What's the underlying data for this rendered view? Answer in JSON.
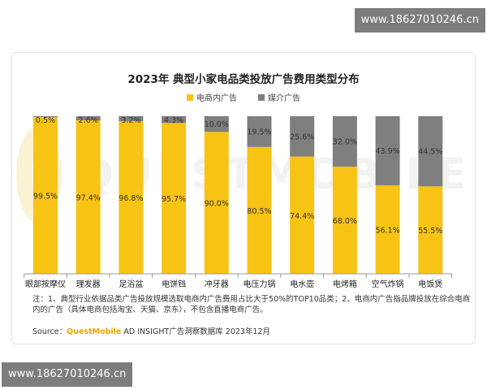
{
  "phone_banner": "www.18627010246.cn",
  "watermark_text": "QUESTMOBILE",
  "colors": {
    "ecommerce": "#f7c315",
    "media": "#7f7f7f"
  },
  "note": "注：1、典型行业依据品类广告投放规模选取电商内广告费用占比大于50%的TOP10品类；2、电商内广告指品牌投放在综合电商内的广告（具体电商包括淘宝、天猫、京东），不包含直播电商广告。",
  "source": {
    "label": "Source：",
    "brand": "QuestMobile",
    "text": " AD INSIGHT广告洞察数据库 2023年12月"
  },
  "chart_data": {
    "type": "bar",
    "stacked": true,
    "percent_stacked": true,
    "title": "2023年 典型小家电品类投放广告费用类型分布",
    "categories": [
      "眼部按摩仪",
      "理发器",
      "足浴盆",
      "电饼铛",
      "冲牙器",
      "电压力锅",
      "电水壶",
      "电烤箱",
      "空气炸锅",
      "电饭煲"
    ],
    "series": [
      {
        "name": "电商内广告",
        "values": [
          99.5,
          97.4,
          96.8,
          95.7,
          90.0,
          80.5,
          74.4,
          68.0,
          56.1,
          55.5
        ]
      },
      {
        "name": "媒介广告",
        "values": [
          0.5,
          2.6,
          3.2,
          4.3,
          10.0,
          19.5,
          25.6,
          32.0,
          43.9,
          44.5
        ]
      }
    ],
    "value_labels": {
      "电商内广告": [
        "99.5%",
        "97.4%",
        "96.8%",
        "95.7%",
        "90.0%",
        "80.5%",
        "74.4%",
        "68.0%",
        "56.1%",
        "55.5%"
      ],
      "媒介广告": [
        "0.5%",
        "2.6%",
        "3.2%",
        "4.3%",
        "10.0%",
        "19.5%",
        "25.6%",
        "32.0%",
        "43.9%",
        "44.5%"
      ]
    },
    "ylim": [
      0,
      100
    ],
    "legend_position": "top-center",
    "grid": false
  }
}
